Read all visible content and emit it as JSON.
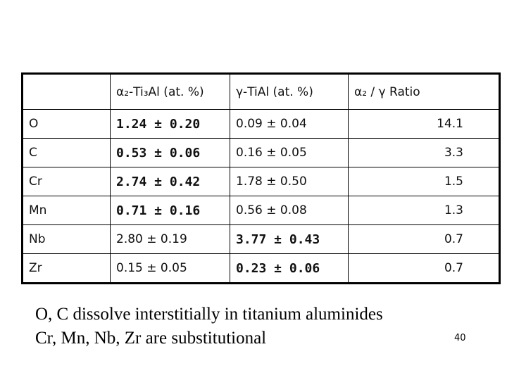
{
  "table": {
    "header": [
      "α₂-Ti₃Al (at. %)",
      "γ-TiAl (at. %)",
      "α₂ / γ Ratio"
    ],
    "rows": [
      [
        "O",
        "1.24 ± 0.20",
        "0.09 ± 0.04",
        "14.1"
      ],
      [
        "C",
        "0.53 ± 0.06",
        "0.16 ± 0.05",
        "3.3"
      ],
      [
        "Cr",
        "2.74 ± 0.42",
        "1.78 ± 0.50",
        "1.5"
      ],
      [
        "Mn",
        "0.71 ± 0.16",
        "0.56 ± 0.08",
        "1.3"
      ],
      [
        "Nb",
        "2.80 ± 0.19",
        "3.77 ± 0.43",
        "0.7"
      ],
      [
        "Zr",
        "0.15 ± 0.05",
        "0.23 ± 0.06",
        "0.7"
      ]
    ]
  },
  "notes": [
    "O, C dissolve interstitially in titanium aluminides",
    "Cr, Mn, Nb, Zr are substitutional"
  ],
  "page_number": "40"
}
